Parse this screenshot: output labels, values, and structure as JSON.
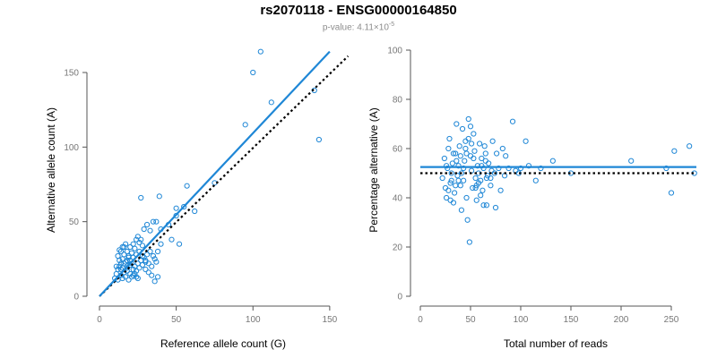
{
  "figure": {
    "title": "rs2070118 - ENSG00000164850",
    "pvalue_label": "p-value: 4.11×10",
    "pvalue_exponent": "-5"
  },
  "colors": {
    "points": "#1f87d6",
    "fit": "#1f87d6",
    "reference": "#000000",
    "axis": "#555555",
    "tick_text": "#777777"
  },
  "chart_data": [
    {
      "type": "scatter",
      "xlabel": "Reference allele count (G)",
      "ylabel": "Alternative allele count (A)",
      "xlim": [
        0,
        160
      ],
      "ylim": [
        0,
        165
      ],
      "xticks": [
        0,
        50,
        100,
        150
      ],
      "yticks": [
        0,
        50,
        100,
        150
      ],
      "fit_line": {
        "style": "solid",
        "x": [
          0,
          150
        ],
        "y": [
          0,
          164
        ]
      },
      "reference_line": {
        "style": "dotted",
        "x": [
          0,
          162
        ],
        "y": [
          0,
          161
        ]
      },
      "points": [
        [
          10,
          12
        ],
        [
          11,
          15
        ],
        [
          12,
          18
        ],
        [
          13,
          20
        ],
        [
          14,
          22
        ],
        [
          15,
          25
        ],
        [
          16,
          28
        ],
        [
          13,
          31
        ],
        [
          15,
          33
        ],
        [
          17,
          35
        ],
        [
          18,
          30
        ],
        [
          19,
          27
        ],
        [
          20,
          24
        ],
        [
          21,
          22
        ],
        [
          22,
          18
        ],
        [
          23,
          15
        ],
        [
          24,
          13
        ],
        [
          25,
          12
        ],
        [
          12,
          11
        ],
        [
          14,
          14
        ],
        [
          16,
          16
        ],
        [
          18,
          19
        ],
        [
          20,
          21
        ],
        [
          22,
          26
        ],
        [
          24,
          28
        ],
        [
          26,
          30
        ],
        [
          28,
          27
        ],
        [
          30,
          24
        ],
        [
          32,
          22
        ],
        [
          34,
          20
        ],
        [
          36,
          25
        ],
        [
          38,
          30
        ],
        [
          40,
          35
        ],
        [
          25,
          40
        ],
        [
          27,
          38
        ],
        [
          29,
          45
        ],
        [
          31,
          48
        ],
        [
          33,
          44
        ],
        [
          35,
          50
        ],
        [
          37,
          50
        ],
        [
          40,
          45
        ],
        [
          27,
          66
        ],
        [
          39,
          67
        ],
        [
          45,
          48
        ],
        [
          47,
          38
        ],
        [
          50,
          54
        ],
        [
          50,
          59
        ],
        [
          52,
          35
        ],
        [
          55,
          60
        ],
        [
          57,
          74
        ],
        [
          62,
          57
        ],
        [
          75,
          76
        ],
        [
          95,
          115
        ],
        [
          100,
          150
        ],
        [
          105,
          164
        ],
        [
          112,
          130
        ],
        [
          140,
          138
        ],
        [
          143,
          105
        ],
        [
          11,
          20
        ],
        [
          13,
          24
        ],
        [
          15,
          19
        ],
        [
          17,
          23
        ],
        [
          19,
          26
        ],
        [
          21,
          29
        ],
        [
          23,
          32
        ],
        [
          12,
          27
        ],
        [
          14,
          30
        ],
        [
          16,
          33
        ],
        [
          18,
          17
        ],
        [
          20,
          15
        ],
        [
          22,
          14
        ],
        [
          24,
          17
        ],
        [
          26,
          19
        ],
        [
          28,
          21
        ],
        [
          30,
          23
        ],
        [
          15,
          12
        ],
        [
          17,
          13
        ],
        [
          19,
          11
        ],
        [
          21,
          13
        ],
        [
          23,
          20
        ],
        [
          25,
          22
        ],
        [
          27,
          24
        ],
        [
          29,
          26
        ],
        [
          31,
          28
        ],
        [
          33,
          30
        ],
        [
          35,
          27
        ],
        [
          37,
          23
        ],
        [
          30,
          18
        ],
        [
          32,
          16
        ],
        [
          34,
          14
        ],
        [
          36,
          10
        ],
        [
          38,
          13
        ],
        [
          28,
          34
        ],
        [
          26,
          36
        ],
        [
          24,
          38
        ],
        [
          22,
          35
        ],
        [
          20,
          33
        ],
        [
          18,
          24
        ],
        [
          16,
          22
        ],
        [
          14,
          18
        ]
      ]
    },
    {
      "type": "scatter",
      "xlabel": "Total number of reads",
      "ylabel": "Percentage alternative (A)",
      "xlim": [
        0,
        275
      ],
      "ylim": [
        0,
        100
      ],
      "xticks": [
        0,
        50,
        100,
        150,
        200,
        250
      ],
      "yticks": [
        0,
        20,
        40,
        60,
        80,
        100
      ],
      "fit_line": {
        "style": "solid",
        "x": [
          0,
          275
        ],
        "y": [
          52.5,
          52.5
        ]
      },
      "reference_line": {
        "style": "dotted",
        "x": [
          0,
          275
        ],
        "y": [
          50,
          50
        ]
      },
      "points": [
        [
          22,
          48
        ],
        [
          24,
          56
        ],
        [
          25,
          44
        ],
        [
          26,
          40
        ],
        [
          27,
          52
        ],
        [
          28,
          60
        ],
        [
          29,
          64
        ],
        [
          30,
          46
        ],
        [
          31,
          50
        ],
        [
          32,
          54
        ],
        [
          33,
          38
        ],
        [
          34,
          42
        ],
        [
          35,
          58
        ],
        [
          36,
          70
        ],
        [
          37,
          49
        ],
        [
          38,
          53
        ],
        [
          39,
          61
        ],
        [
          40,
          45
        ],
        [
          41,
          35
        ],
        [
          42,
          68
        ],
        [
          43,
          47
        ],
        [
          44,
          55
        ],
        [
          45,
          63
        ],
        [
          46,
          40
        ],
        [
          47,
          31
        ],
        [
          48,
          72
        ],
        [
          49,
          22
        ],
        [
          50,
          57
        ],
        [
          51,
          51
        ],
        [
          52,
          44
        ],
        [
          53,
          66
        ],
        [
          54,
          59
        ],
        [
          55,
          48
        ],
        [
          56,
          39
        ],
        [
          57,
          53
        ],
        [
          58,
          50
        ],
        [
          59,
          62
        ],
        [
          60,
          47
        ],
        [
          61,
          56
        ],
        [
          62,
          43
        ],
        [
          63,
          52
        ],
        [
          64,
          61
        ],
        [
          65,
          58
        ],
        [
          66,
          37
        ],
        [
          67,
          49
        ],
        [
          68,
          54
        ],
        [
          70,
          45
        ],
        [
          72,
          63
        ],
        [
          74,
          50
        ],
        [
          75,
          36
        ],
        [
          76,
          58
        ],
        [
          78,
          52
        ],
        [
          80,
          43
        ],
        [
          82,
          60
        ],
        [
          84,
          49
        ],
        [
          85,
          57
        ],
        [
          88,
          52
        ],
        [
          92,
          71
        ],
        [
          95,
          51
        ],
        [
          98,
          50
        ],
        [
          100,
          52
        ],
        [
          105,
          63
        ],
        [
          108,
          53
        ],
        [
          115,
          47
        ],
        [
          120,
          52
        ],
        [
          132,
          55
        ],
        [
          150,
          50
        ],
        [
          210,
          55
        ],
        [
          245,
          52
        ],
        [
          250,
          42
        ],
        [
          253,
          59
        ],
        [
          268,
          61
        ],
        [
          273,
          50
        ],
        [
          30,
          39
        ],
        [
          35,
          45
        ],
        [
          40,
          57
        ],
        [
          45,
          60
        ],
        [
          50,
          69
        ],
        [
          55,
          44
        ],
        [
          60,
          41
        ],
        [
          65,
          55
        ],
        [
          70,
          48
        ],
        [
          28,
          43
        ],
        [
          33,
          58
        ],
        [
          38,
          47
        ],
        [
          43,
          52
        ],
        [
          48,
          64
        ],
        [
          53,
          56
        ],
        [
          58,
          46
        ],
        [
          63,
          37
        ],
        [
          26,
          53
        ],
        [
          31,
          47
        ],
        [
          36,
          55
        ],
        [
          41,
          50
        ],
        [
          46,
          58
        ],
        [
          51,
          62
        ],
        [
          56,
          45
        ],
        [
          61,
          53
        ],
        [
          66,
          48
        ],
        [
          71,
          51
        ]
      ]
    }
  ]
}
